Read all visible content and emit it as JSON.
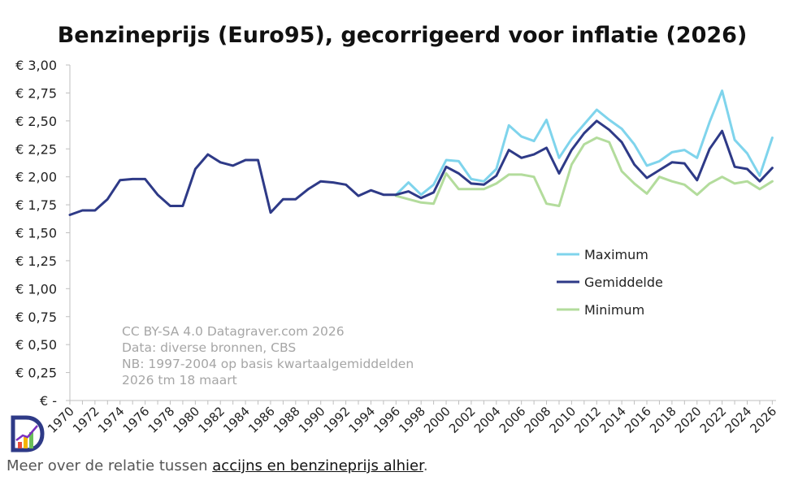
{
  "chart_data": {
    "type": "line",
    "title": "Benzineprijs (Euro95), gecorrigeerd voor inflatie (2026)",
    "xlabel": "",
    "ylabel": "",
    "ylim": [
      0,
      3
    ],
    "y_ticks": [
      {
        "value": 3.0,
        "label": "€ 3,00"
      },
      {
        "value": 2.75,
        "label": "€ 2,75"
      },
      {
        "value": 2.5,
        "label": "€ 2,50"
      },
      {
        "value": 2.25,
        "label": "€ 2,25"
      },
      {
        "value": 2.0,
        "label": "€ 2,00"
      },
      {
        "value": 1.75,
        "label": "€ 1,75"
      },
      {
        "value": 1.5,
        "label": "€ 1,50"
      },
      {
        "value": 1.25,
        "label": "€ 1,25"
      },
      {
        "value": 1.0,
        "label": "€ 1,00"
      },
      {
        "value": 0.75,
        "label": "€ 0,75"
      },
      {
        "value": 0.5,
        "label": "€ 0,50"
      },
      {
        "value": 0.25,
        "label": "€ 0,25"
      },
      {
        "value": 0,
        "label": "€ -"
      }
    ],
    "x_tick_labels": [
      "1970",
      "1972",
      "1974",
      "1976",
      "1978",
      "1980",
      "1982",
      "1984",
      "1986",
      "1988",
      "1990",
      "1992",
      "1994",
      "1996",
      "1998",
      "2000",
      "2002",
      "2004",
      "2006",
      "2008",
      "2010",
      "2012",
      "2014",
      "2016",
      "2018",
      "2020",
      "2022",
      "2024",
      "2026"
    ],
    "series": [
      {
        "name": "Maximum",
        "color": "#7fd4ec",
        "x": [
          1996,
          1997,
          1998,
          1999,
          2000,
          2001,
          2002,
          2003,
          2004,
          2005,
          2006,
          2007,
          2008,
          2009,
          2010,
          2011,
          2012,
          2013,
          2014,
          2015,
          2016,
          2017,
          2018,
          2019,
          2020,
          2021,
          2022,
          2023,
          2024,
          2025,
          2026
        ],
        "values": [
          1.84,
          1.95,
          1.84,
          1.93,
          2.15,
          2.14,
          1.98,
          1.96,
          2.07,
          2.46,
          2.36,
          2.32,
          2.51,
          2.17,
          2.34,
          2.47,
          2.6,
          2.51,
          2.43,
          2.29,
          2.1,
          2.14,
          2.22,
          2.24,
          2.17,
          2.49,
          2.77,
          2.33,
          2.21,
          2.01,
          2.35
        ]
      },
      {
        "name": "Gemiddelde",
        "color": "#2e3a87",
        "x": [
          1970,
          1971,
          1972,
          1973,
          1974,
          1975,
          1976,
          1977,
          1978,
          1979,
          1980,
          1981,
          1982,
          1983,
          1984,
          1985,
          1986,
          1987,
          1988,
          1989,
          1990,
          1991,
          1992,
          1993,
          1994,
          1995,
          1996,
          1997,
          1998,
          1999,
          2000,
          2001,
          2002,
          2003,
          2004,
          2005,
          2006,
          2007,
          2008,
          2009,
          2010,
          2011,
          2012,
          2013,
          2014,
          2015,
          2016,
          2017,
          2018,
          2019,
          2020,
          2021,
          2022,
          2023,
          2024,
          2025,
          2026
        ],
        "values": [
          1.66,
          1.7,
          1.7,
          1.8,
          1.97,
          1.98,
          1.98,
          1.84,
          1.74,
          1.74,
          2.07,
          2.2,
          2.13,
          2.1,
          2.15,
          2.15,
          1.68,
          1.8,
          1.8,
          1.89,
          1.96,
          1.95,
          1.93,
          1.83,
          1.88,
          1.84,
          1.84,
          1.87,
          1.81,
          1.86,
          2.09,
          2.03,
          1.94,
          1.93,
          2.01,
          2.24,
          2.17,
          2.2,
          2.26,
          2.03,
          2.24,
          2.39,
          2.5,
          2.42,
          2.31,
          2.11,
          1.99,
          2.06,
          2.13,
          2.12,
          1.97,
          2.25,
          2.41,
          2.09,
          2.07,
          1.96,
          2.08
        ]
      },
      {
        "name": "Minimum",
        "color": "#b3dc9c",
        "x": [
          1996,
          1997,
          1998,
          1999,
          2000,
          2001,
          2002,
          2003,
          2004,
          2005,
          2006,
          2007,
          2008,
          2009,
          2010,
          2011,
          2012,
          2013,
          2014,
          2015,
          2016,
          2017,
          2018,
          2019,
          2020,
          2021,
          2022,
          2023,
          2024,
          2025,
          2026
        ],
        "values": [
          1.83,
          1.8,
          1.77,
          1.76,
          2.03,
          1.89,
          1.89,
          1.89,
          1.94,
          2.02,
          2.02,
          2.0,
          1.76,
          1.74,
          2.11,
          2.29,
          2.35,
          2.31,
          2.05,
          1.94,
          1.85,
          2.0,
          1.96,
          1.93,
          1.84,
          1.94,
          2.0,
          1.94,
          1.96,
          1.89,
          1.96
        ]
      }
    ],
    "legend": [
      "Maximum",
      "Gemiddelde",
      "Minimum"
    ],
    "legend_position": "right",
    "annotations": [
      "CC BY-SA 4.0 Datagraver.com 2026",
      "Data: diverse bronnen, CBS",
      "NB: 1997-2004 op basis kwartaalgemiddelden",
      "2026 tm 18 maart"
    ],
    "grid": false
  },
  "footer": {
    "text_before": "Meer over de relatie tussen ",
    "link_text": "accijns en benzineprijs alhier",
    "text_after": "."
  },
  "logo_icon": "datagraver-logo-icon"
}
